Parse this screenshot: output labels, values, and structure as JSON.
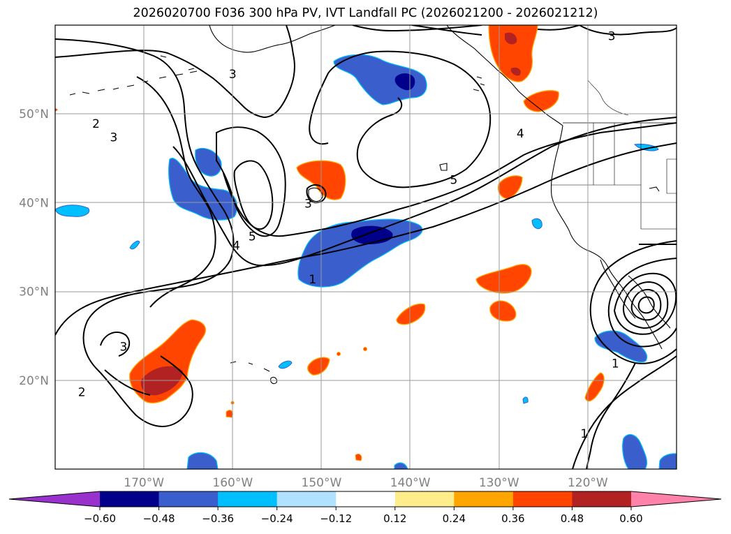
{
  "chart_data": {
    "type": "contour map",
    "title": "2026020700 F036 300 hPa PV, IVT Landfall PC (2026021200 - 2026021212)",
    "xlim": [
      -180,
      -110
    ],
    "ylim": [
      10,
      60
    ],
    "lon_ticks": [
      {
        "value": -170,
        "label": "170°W"
      },
      {
        "value": -160,
        "label": "160°W"
      },
      {
        "value": -150,
        "label": "150°W"
      },
      {
        "value": -140,
        "label": "140°W"
      },
      {
        "value": -130,
        "label": "130°W"
      },
      {
        "value": -120,
        "label": "120°W"
      }
    ],
    "lat_ticks": [
      {
        "value": 20,
        "label": "20°N"
      },
      {
        "value": 30,
        "label": "30°N"
      },
      {
        "value": 40,
        "label": "40°N"
      },
      {
        "value": 50,
        "label": "50°N"
      }
    ],
    "colorbar": {
      "bounds": [
        -0.6,
        -0.48,
        -0.36,
        -0.24,
        -0.12,
        0.12,
        0.24,
        0.36,
        0.48,
        0.6
      ],
      "tick_labels": [
        "−0.60",
        "−0.48",
        "−0.36",
        "−0.24",
        "−0.12",
        "0.12",
        "0.24",
        "0.36",
        "0.48",
        "0.60"
      ],
      "colors": [
        "#9932cc",
        "#00008b",
        "#3a5fcd",
        "#00bfff",
        "#b0e2ff",
        "#ffffff",
        "#ffec8b",
        "#ffa500",
        "#ff4500",
        "#b22222",
        "#ff82ab"
      ],
      "extend": "both"
    },
    "contours": {
      "variable": "300 hPa PV",
      "labels": [
        {
          "text": "3",
          "lon": -160,
          "lat": 54.5
        },
        {
          "text": "3",
          "lon": -117.3,
          "lat": 58.8
        },
        {
          "text": "2",
          "lon": -175.4,
          "lat": 48.9
        },
        {
          "text": "3",
          "lon": -173.4,
          "lat": 47.4
        },
        {
          "text": "5",
          "lon": -157.8,
          "lat": 36.2
        },
        {
          "text": "4",
          "lon": -159.6,
          "lat": 35.2
        },
        {
          "text": "3",
          "lon": -151.5,
          "lat": 39.9
        },
        {
          "text": "1",
          "lon": -151,
          "lat": 31.4
        },
        {
          "text": "5",
          "lon": -135.1,
          "lat": 42.6
        },
        {
          "text": "4",
          "lon": -127.6,
          "lat": 47.8
        },
        {
          "text": "3",
          "lon": -172.3,
          "lat": 23.8
        },
        {
          "text": "2",
          "lon": -177,
          "lat": 18.7
        },
        {
          "text": "1",
          "lon": -120.4,
          "lat": 14
        },
        {
          "text": "1",
          "lon": -116.9,
          "lat": 21.9
        }
      ]
    },
    "shaded_anomalies": [
      {
        "sign": "negative",
        "level": "-0.36",
        "lon": -140.8,
        "lat": 54.7
      },
      {
        "sign": "negative",
        "level": "-0.60",
        "lon": -139.2,
        "lat": 56.7
      },
      {
        "sign": "negative",
        "level": "-0.36",
        "lon": -162.1,
        "lat": 44.3
      },
      {
        "sign": "negative",
        "level": "-0.36",
        "lon": -160.5,
        "lat": 39.9
      },
      {
        "sign": "negative",
        "level": "-0.24",
        "lon": -175.4,
        "lat": 38.5
      },
      {
        "sign": "negative",
        "level": "-0.48",
        "lon": -144,
        "lat": 35.7
      },
      {
        "sign": "negative",
        "level": "-0.36",
        "lon": -115.6,
        "lat": 23.9
      },
      {
        "sign": "negative",
        "level": "-0.36",
        "lon": -112.7,
        "lat": 13.5
      },
      {
        "sign": "positive",
        "level": "0.36",
        "lon": -149.5,
        "lat": 42.3
      },
      {
        "sign": "positive",
        "level": "0.48",
        "lon": -125.1,
        "lat": 59
      },
      {
        "sign": "positive",
        "level": "0.48",
        "lon": -169.2,
        "lat": 19
      },
      {
        "sign": "positive",
        "level": "0.36",
        "lon": -127.8,
        "lat": 30.3
      },
      {
        "sign": "positive",
        "level": "0.36",
        "lon": -128.7,
        "lat": 41
      },
      {
        "sign": "positive",
        "level": "0.36",
        "lon": -138.1,
        "lat": 27.8
      },
      {
        "sign": "positive",
        "level": "0.36",
        "lon": -129.1,
        "lat": 27.9
      },
      {
        "sign": "positive",
        "level": "0.36",
        "lon": -148.6,
        "lat": 21.8
      },
      {
        "sign": "positive",
        "level": "0.36",
        "lon": -119,
        "lat": 19.4
      }
    ]
  }
}
